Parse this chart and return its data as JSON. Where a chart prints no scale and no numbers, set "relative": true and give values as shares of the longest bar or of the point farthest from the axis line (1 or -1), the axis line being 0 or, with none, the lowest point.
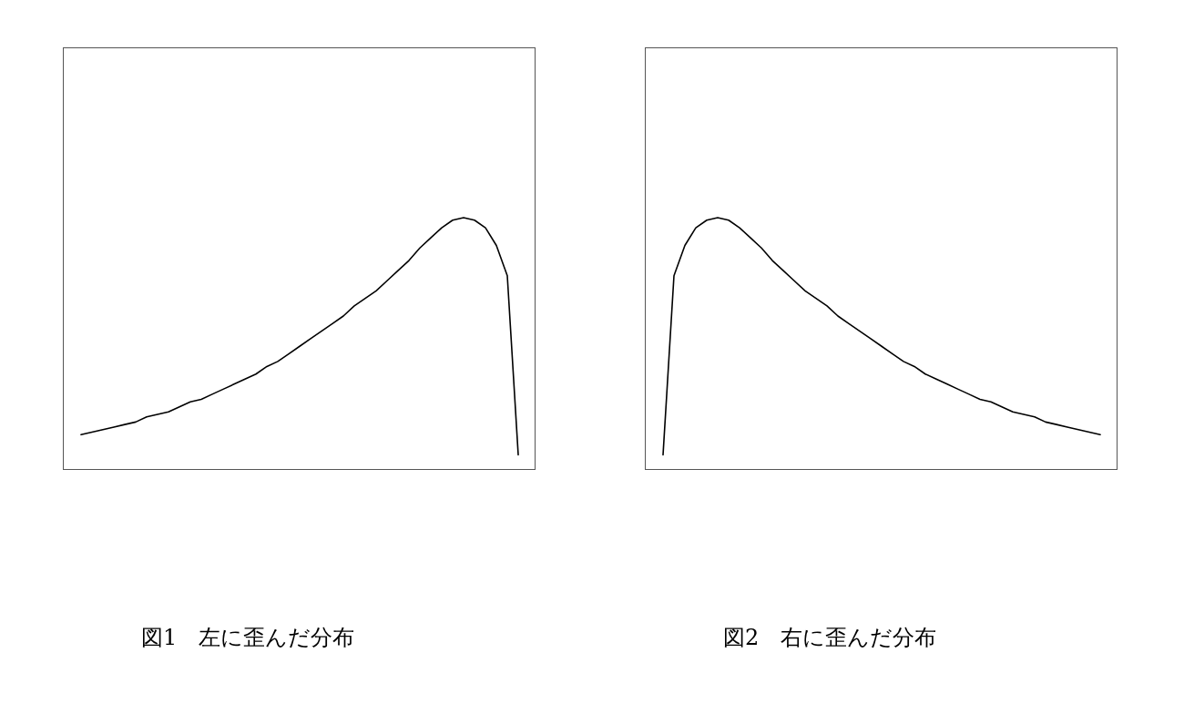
{
  "chart_data": [
    {
      "type": "line",
      "title": "図1　左に歪んだ分布",
      "relative": true,
      "marker": "none",
      "line_style": "solid",
      "categories": [
        null,
        null,
        null,
        null,
        null,
        null,
        null,
        null,
        null,
        null,
        null,
        null,
        null,
        null,
        null,
        null,
        null,
        null,
        null,
        null,
        null,
        null,
        null,
        null,
        null,
        null,
        null,
        null,
        null,
        null,
        null,
        null,
        null,
        null,
        null,
        null,
        null,
        null,
        null,
        null,
        null
      ],
      "series": [
        {
          "color": "#000000",
          "values": [
            0.14,
            0.15,
            0.16,
            0.17,
            0.18,
            0.19,
            0.21,
            0.22,
            0.23,
            0.25,
            0.27,
            0.28,
            0.3,
            0.32,
            0.34,
            0.36,
            0.38,
            0.41,
            0.43,
            0.46,
            0.49,
            0.52,
            0.55,
            0.58,
            0.61,
            0.65,
            0.68,
            0.71,
            0.75,
            0.79,
            0.83,
            0.88,
            0.92,
            0.96,
            0.99,
            1.0,
            0.99,
            0.96,
            0.89,
            0.77,
            0.06
          ]
        }
      ]
    },
    {
      "type": "line",
      "title": "図2　右に歪んだ分布",
      "relative": true,
      "marker": "none",
      "line_style": "solid",
      "categories": [
        null,
        null,
        null,
        null,
        null,
        null,
        null,
        null,
        null,
        null,
        null,
        null,
        null,
        null,
        null,
        null,
        null,
        null,
        null,
        null,
        null,
        null,
        null,
        null,
        null,
        null,
        null,
        null,
        null,
        null,
        null,
        null,
        null,
        null,
        null,
        null,
        null,
        null,
        null,
        null,
        null
      ],
      "series": [
        {
          "color": "#000000",
          "values": [
            0.06,
            0.77,
            0.89,
            0.96,
            0.99,
            1.0,
            0.99,
            0.96,
            0.92,
            0.88,
            0.83,
            0.79,
            0.75,
            0.71,
            0.68,
            0.65,
            0.61,
            0.58,
            0.55,
            0.52,
            0.49,
            0.46,
            0.43,
            0.41,
            0.38,
            0.36,
            0.34,
            0.32,
            0.3,
            0.28,
            0.27,
            0.25,
            0.23,
            0.22,
            0.21,
            0.19,
            0.18,
            0.17,
            0.16,
            0.15,
            0.14
          ]
        }
      ]
    }
  ]
}
